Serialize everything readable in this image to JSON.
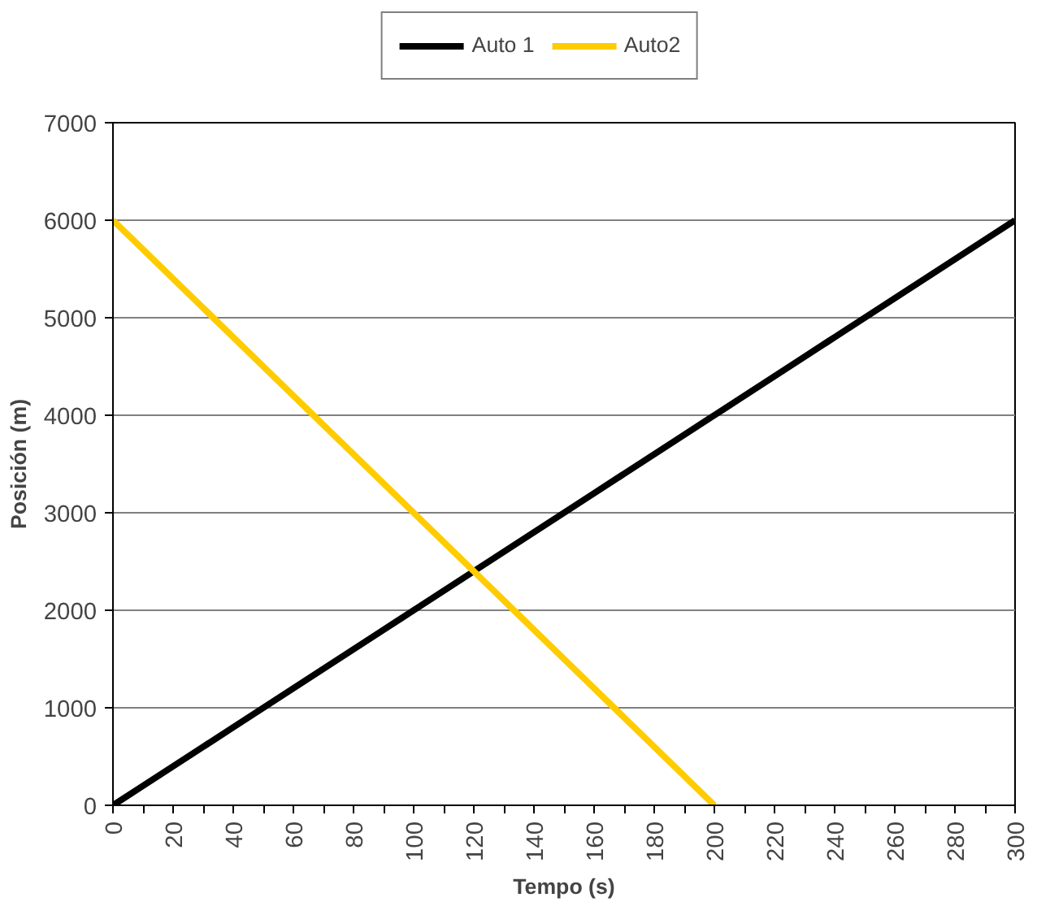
{
  "chart_data": {
    "type": "line",
    "xlabel": "Tempo (s)",
    "ylabel": "Posición (m)",
    "xlim": [
      0,
      300
    ],
    "ylim": [
      0,
      7000
    ],
    "xticks": [
      0,
      {
        "value": 10,
        "label": null
      },
      20,
      {
        "value": 30,
        "label": null
      },
      40,
      {
        "value": 50,
        "label": null
      },
      60,
      {
        "value": 70,
        "label": null
      },
      80,
      {
        "value": 90,
        "label": null
      },
      100,
      {
        "value": 110,
        "label": null
      },
      120,
      {
        "value": 130,
        "label": null
      },
      140,
      {
        "value": 150,
        "label": null
      },
      160,
      {
        "value": 170,
        "label": null
      },
      180,
      {
        "value": 190,
        "label": null
      },
      200,
      {
        "value": 210,
        "label": null
      },
      220,
      {
        "value": 230,
        "label": null
      },
      240,
      {
        "value": 250,
        "label": null
      },
      260,
      {
        "value": 270,
        "label": null
      },
      280,
      {
        "value": 290,
        "label": null
      },
      300
    ],
    "yticks": [
      0,
      1000,
      2000,
      3000,
      4000,
      5000,
      6000,
      7000
    ],
    "grid": "y",
    "legend": "top",
    "marker": "none",
    "line_style": "solid",
    "series": [
      {
        "name": "Auto 1",
        "color": "#000000",
        "x": [
          0,
          10,
          20,
          30,
          40,
          50,
          60,
          70,
          80,
          90,
          100,
          110,
          120,
          130,
          140,
          150,
          160,
          170,
          180,
          190,
          200,
          210,
          220,
          230,
          240,
          250,
          260,
          270,
          280,
          290,
          300
        ],
        "values": [
          0,
          200,
          400,
          600,
          800,
          1000,
          1200,
          1400,
          1600,
          1800,
          2000,
          2200,
          2400,
          2600,
          2800,
          3000,
          3200,
          3400,
          3600,
          3800,
          4000,
          4200,
          4400,
          4600,
          4800,
          5000,
          5200,
          5400,
          5600,
          5800,
          6000
        ]
      },
      {
        "name": "Auto2",
        "color": "#ffcc00",
        "x": [
          0,
          10,
          20,
          30,
          40,
          50,
          60,
          70,
          80,
          90,
          100,
          110,
          120,
          130,
          140,
          150,
          160,
          170,
          180,
          190,
          200
        ],
        "values": [
          6000,
          5700,
          5400,
          5100,
          4800,
          4500,
          4200,
          3900,
          3600,
          3300,
          3000,
          2700,
          2400,
          2100,
          1800,
          1500,
          1200,
          900,
          600,
          300,
          0
        ]
      }
    ]
  }
}
